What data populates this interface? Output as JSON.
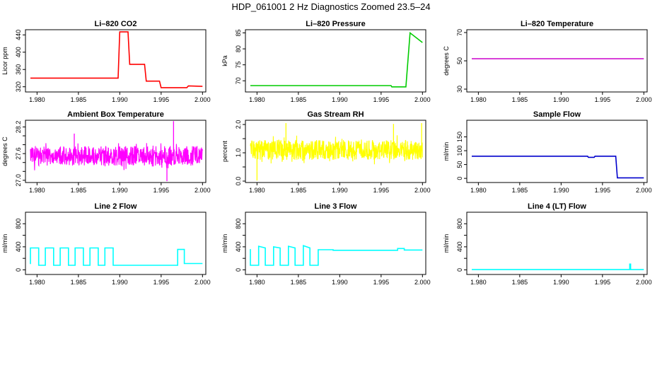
{
  "figure": {
    "title": "HDP_061001  2 Hz Diagnostics Zoomed 23.5–24"
  },
  "chart_data": [
    {
      "type": "line",
      "title": "Li–820 CO2",
      "ylabel": "Licor ppm",
      "color": "#ff0000",
      "xlim": [
        1.9786,
        2.0004
      ],
      "ylim": [
        308,
        452
      ],
      "xticks": [
        1.98,
        1.985,
        1.99,
        1.995,
        2.0
      ],
      "xtick_labels": [
        "1.980",
        "1.985",
        "1.990",
        "1.995",
        "2.000"
      ],
      "yticks": [
        320,
        360,
        400,
        440
      ],
      "ytick_labels": [
        "320",
        "360",
        "400",
        "440"
      ],
      "series": [
        {
          "x": [
            1.9792,
            1.9898,
            1.99,
            1.991,
            1.9912,
            1.993,
            1.9932,
            1.9948,
            1.995,
            1.9981,
            1.9983,
            2.0
          ],
          "y": [
            340,
            340,
            447,
            447,
            372,
            372,
            333,
            333,
            318,
            318,
            322,
            321
          ]
        }
      ]
    },
    {
      "type": "line",
      "title": "Li–820 Pressure",
      "ylabel": "kPa",
      "color": "#00cc00",
      "xlim": [
        1.9786,
        2.0004
      ],
      "ylim": [
        66.5,
        86
      ],
      "xticks": [
        1.98,
        1.985,
        1.99,
        1.995,
        2.0
      ],
      "xtick_labels": [
        "1.980",
        "1.985",
        "1.990",
        "1.995",
        "2.000"
      ],
      "yticks": [
        70,
        75,
        80,
        85
      ],
      "ytick_labels": [
        "70",
        "75",
        "80",
        "85"
      ],
      "series": [
        {
          "x": [
            1.9792,
            1.9962,
            1.9963,
            1.998,
            1.9985,
            2.0
          ],
          "y": [
            68.5,
            68.5,
            68.1,
            68.1,
            85.0,
            82.0
          ]
        }
      ]
    },
    {
      "type": "line",
      "title": "Li–820 Temperature",
      "ylabel": "degrees C",
      "color": "#cc00cc",
      "xlim": [
        1.9786,
        2.0004
      ],
      "ylim": [
        28,
        72
      ],
      "xticks": [
        1.98,
        1.985,
        1.99,
        1.995,
        2.0
      ],
      "xtick_labels": [
        "1.980",
        "1.985",
        "1.990",
        "1.995",
        "2.000"
      ],
      "yticks": [
        30,
        50,
        70
      ],
      "ytick_labels": [
        "30",
        "50",
        "70"
      ],
      "series": [
        {
          "x": [
            1.9792,
            2.0
          ],
          "y": [
            51.5,
            51.5
          ]
        }
      ]
    },
    {
      "type": "line",
      "title": "Ambient Box Temperature",
      "ylabel": "degrees C",
      "color": "#ff00ff",
      "xlim": [
        1.9786,
        2.0004
      ],
      "ylim": [
        26.95,
        28.35
      ],
      "xticks": [
        1.98,
        1.985,
        1.99,
        1.995,
        2.0
      ],
      "xtick_labels": [
        "1.980",
        "1.985",
        "1.990",
        "1.995",
        "2.000"
      ],
      "yticks": [
        27.0,
        27.2,
        27.4,
        27.6,
        27.8,
        28.0,
        28.2
      ],
      "ytick_labels": [
        "27.0",
        "",
        "",
        "27.6",
        "",
        "",
        "28.2"
      ],
      "noise": {
        "x0": 1.9792,
        "x1": 2.0,
        "n": 700,
        "center": 27.55,
        "amp": 0.22,
        "spikes": [
          [
            1.9965,
            28.33
          ],
          [
            1.9957,
            26.98
          ],
          [
            1.9845,
            28.05
          ]
        ]
      }
    },
    {
      "type": "line",
      "title": "Gas Stream RH",
      "ylabel": "percent",
      "color": "#ffff00",
      "xlim": [
        1.9786,
        2.0004
      ],
      "ylim": [
        -0.05,
        2.15
      ],
      "xticks": [
        1.98,
        1.985,
        1.99,
        1.995,
        2.0
      ],
      "xtick_labels": [
        "1.980",
        "1.985",
        "1.990",
        "1.995",
        "2.000"
      ],
      "yticks": [
        0.0,
        0.5,
        1.0,
        1.5,
        2.0
      ],
      "ytick_labels": [
        "0.0",
        "",
        "1.0",
        "",
        "2.0"
      ],
      "noise": {
        "x0": 1.9792,
        "x1": 2.0,
        "n": 700,
        "center": 1.1,
        "amp": 0.35,
        "spikes": [
          [
            1.98,
            0.02
          ],
          [
            1.9835,
            2.05
          ],
          [
            1.9965,
            2.02
          ],
          [
            1.9999,
            2.05
          ]
        ]
      }
    },
    {
      "type": "line",
      "title": "Sample Flow",
      "ylabel": "ml/min",
      "color": "#0000cc",
      "xlim": [
        1.9786,
        2.0004
      ],
      "ylim": [
        -15,
        210
      ],
      "xticks": [
        1.98,
        1.985,
        1.99,
        1.995,
        2.0
      ],
      "xtick_labels": [
        "1.980",
        "1.985",
        "1.990",
        "1.995",
        "2.000"
      ],
      "yticks": [
        0,
        50,
        100,
        150
      ],
      "ytick_labels": [
        "0",
        "50",
        "100",
        "150"
      ],
      "series": [
        {
          "x": [
            1.9792,
            1.9932,
            1.9933,
            1.994,
            1.9941,
            1.9966,
            1.9968,
            2.0
          ],
          "y": [
            80,
            80,
            76,
            76,
            80,
            80,
            2,
            2
          ]
        }
      ]
    },
    {
      "type": "line",
      "title": "Line 2 Flow",
      "ylabel": "ml/min",
      "color": "#00ffff",
      "xlim": [
        1.9786,
        2.0004
      ],
      "ylim": [
        -80,
        1000
      ],
      "xticks": [
        1.98,
        1.985,
        1.99,
        1.995,
        2.0
      ],
      "xtick_labels": [
        "1.980",
        "1.985",
        "1.990",
        "1.995",
        "2.000"
      ],
      "yticks": [
        0,
        200,
        400,
        600,
        800
      ],
      "ytick_labels": [
        "0",
        "400",
        "800"
      ],
      "ytick_label_values": [
        0,
        400,
        800
      ],
      "series": [
        {
          "x": [
            1.9792,
            1.9792,
            1.9802,
            1.9802,
            1.981,
            1.981,
            1.982,
            1.982,
            1.9828,
            1.9828,
            1.9838,
            1.9838,
            1.9846,
            1.9846,
            1.9856,
            1.9856,
            1.9864,
            1.9864,
            1.9874,
            1.9874,
            1.9882,
            1.9882,
            1.9892,
            1.9892,
            1.997,
            1.997,
            1.9978,
            1.9978,
            2.0
          ],
          "y": [
            100,
            380,
            380,
            80,
            80,
            380,
            380,
            80,
            80,
            380,
            380,
            80,
            80,
            380,
            380,
            80,
            80,
            380,
            380,
            80,
            80,
            380,
            380,
            80,
            80,
            355,
            355,
            110,
            110
          ]
        }
      ]
    },
    {
      "type": "line",
      "title": "Line 3 Flow",
      "ylabel": "ml/min",
      "color": "#00ffff",
      "xlim": [
        1.9786,
        2.0004
      ],
      "ylim": [
        -80,
        1000
      ],
      "xticks": [
        1.98,
        1.985,
        1.99,
        1.995,
        2.0
      ],
      "xtick_labels": [
        "1.980",
        "1.985",
        "1.990",
        "1.995",
        "2.000"
      ],
      "yticks": [
        0,
        200,
        400,
        600,
        800
      ],
      "ytick_labels": [
        "0",
        "400",
        "800"
      ],
      "ytick_label_values": [
        0,
        400,
        800
      ],
      "series": [
        {
          "x": [
            1.9792,
            1.9792,
            1.9802,
            1.9802,
            1.981,
            1.981,
            1.982,
            1.982,
            1.9828,
            1.9828,
            1.9838,
            1.9838,
            1.9846,
            1.9846,
            1.9856,
            1.9856,
            1.9864,
            1.9864,
            1.9874,
            1.9874,
            1.9882,
            1.9882,
            1.9892,
            1.9892,
            1.997,
            1.997,
            1.9978,
            1.9978,
            2.0
          ],
          "y": [
            360,
            80,
            80,
            410,
            380,
            80,
            80,
            400,
            380,
            80,
            80,
            410,
            380,
            80,
            80,
            420,
            380,
            80,
            80,
            350,
            350,
            350,
            350,
            340,
            340,
            370,
            370,
            345,
            345
          ]
        }
      ]
    },
    {
      "type": "line",
      "title": "Line 4 (LT) Flow",
      "ylabel": "ml/min",
      "color": "#00ffff",
      "xlim": [
        1.9786,
        2.0004
      ],
      "ylim": [
        -80,
        1000
      ],
      "xticks": [
        1.98,
        1.985,
        1.99,
        1.995,
        2.0
      ],
      "xtick_labels": [
        "1.980",
        "1.985",
        "1.990",
        "1.995",
        "2.000"
      ],
      "yticks": [
        0,
        200,
        400,
        600,
        800
      ],
      "ytick_labels": [
        "0",
        "400",
        "800"
      ],
      "ytick_label_values": [
        0,
        400,
        800
      ],
      "series": [
        {
          "x": [
            1.9792,
            1.9983,
            1.9983,
            1.9984,
            1.9984,
            2.0
          ],
          "y": [
            5,
            5,
            100,
            100,
            5,
            5
          ]
        }
      ]
    }
  ]
}
